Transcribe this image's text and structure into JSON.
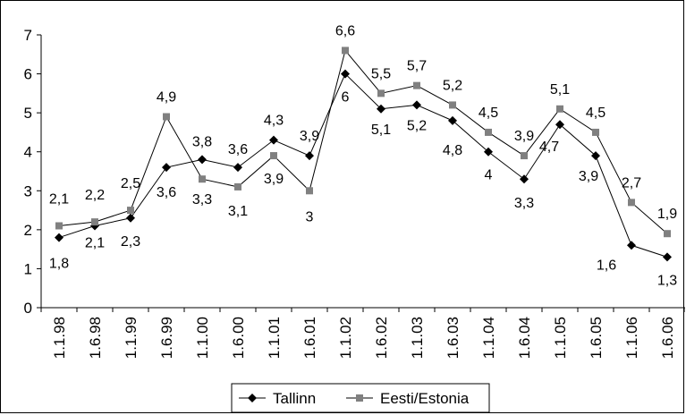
{
  "chart_data": {
    "type": "line",
    "title": "",
    "xlabel": "",
    "ylabel": "",
    "ylim": [
      0,
      7
    ],
    "yticks": [
      "0",
      "1",
      "2",
      "3",
      "4",
      "5",
      "6",
      "7"
    ],
    "grid": false,
    "legend_position": "bottom",
    "categories": [
      "1.1.98",
      "1.6.98",
      "1.1.99",
      "1.6.99",
      "1.1.00",
      "1.6.00",
      "1.1.01",
      "1.6.01",
      "1.1.02",
      "1.6.02",
      "1.1.03",
      "1.6.03",
      "1.1.04",
      "1.6.04",
      "1.1.05",
      "1.6.05",
      "1.1.06",
      "1.6.06"
    ],
    "series": [
      {
        "name": "Tallinn",
        "marker": "diamond",
        "color": "#000000",
        "values": [
          1.8,
          2.1,
          2.3,
          3.6,
          3.8,
          3.6,
          4.3,
          3.9,
          6.0,
          5.1,
          5.2,
          4.8,
          4.0,
          3.3,
          4.7,
          3.9,
          1.6,
          1.3
        ],
        "labels": [
          "1,8",
          "2,1",
          "2,3",
          "3,6",
          "",
          "",
          "4,3",
          "3,9",
          "6",
          "5,1",
          "5,2",
          "4,8",
          "4",
          "3,3",
          "4,7",
          "3,9",
          "1,6",
          "1,3"
        ]
      },
      {
        "name": "Eesti/Estonia",
        "marker": "square",
        "color": "#808080",
        "values": [
          2.1,
          2.2,
          2.5,
          4.9,
          3.3,
          3.1,
          3.9,
          3.0,
          6.6,
          5.5,
          5.7,
          5.2,
          4.5,
          3.9,
          5.1,
          4.5,
          2.7,
          1.9
        ],
        "labels": [
          "2,1",
          "2,2",
          "2,5",
          "4,9",
          "3,3",
          "3,1",
          "3,9",
          "3",
          "6,6",
          "5,5",
          "5,7",
          "5,2",
          "4,5",
          "3,9",
          "5,1",
          "4,5",
          "2,7",
          "1,9"
        ]
      }
    ],
    "extra_labels": [
      {
        "category_index": 4,
        "text": "3,8"
      },
      {
        "category_index": 5,
        "text": "3,6"
      }
    ]
  }
}
